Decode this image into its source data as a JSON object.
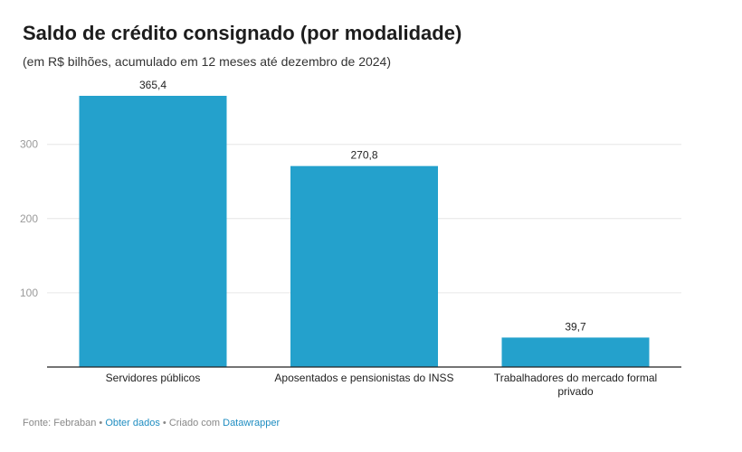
{
  "header": {
    "title": "Saldo de crédito consignado (por modalidade)",
    "subtitle": "(em R$ bilhões, acumulado em 12 meses até dezembro de 2024)"
  },
  "footer": {
    "source": "Fonte: Febraban",
    "sep1": " • ",
    "get_data": "Obter dados",
    "sep2": " • Criado com ",
    "tool": "Datawrapper"
  },
  "colors": {
    "bar": "#24a1cc",
    "grid": "#e6e6e6",
    "axis": "#222222",
    "link": "#1f8dc1"
  },
  "chart_data": {
    "type": "bar",
    "title": "Saldo de crédito consignado (por modalidade)",
    "subtitle": "(em R$ bilhões, acumulado em 12 meses até dezembro de 2024)",
    "categories": [
      [
        "Servidores públicos"
      ],
      [
        "Aposentados e pensionistas do INSS"
      ],
      [
        "Trabalhadores do mercado formal",
        "privado"
      ]
    ],
    "values": [
      365.4,
      270.8,
      39.7
    ],
    "value_labels": [
      "365,4",
      "270,8",
      "39,7"
    ],
    "yticks": [
      100,
      200,
      300
    ],
    "ylim": [
      0,
      365.4
    ],
    "xlabel": "",
    "ylabel": "",
    "grid": true
  }
}
